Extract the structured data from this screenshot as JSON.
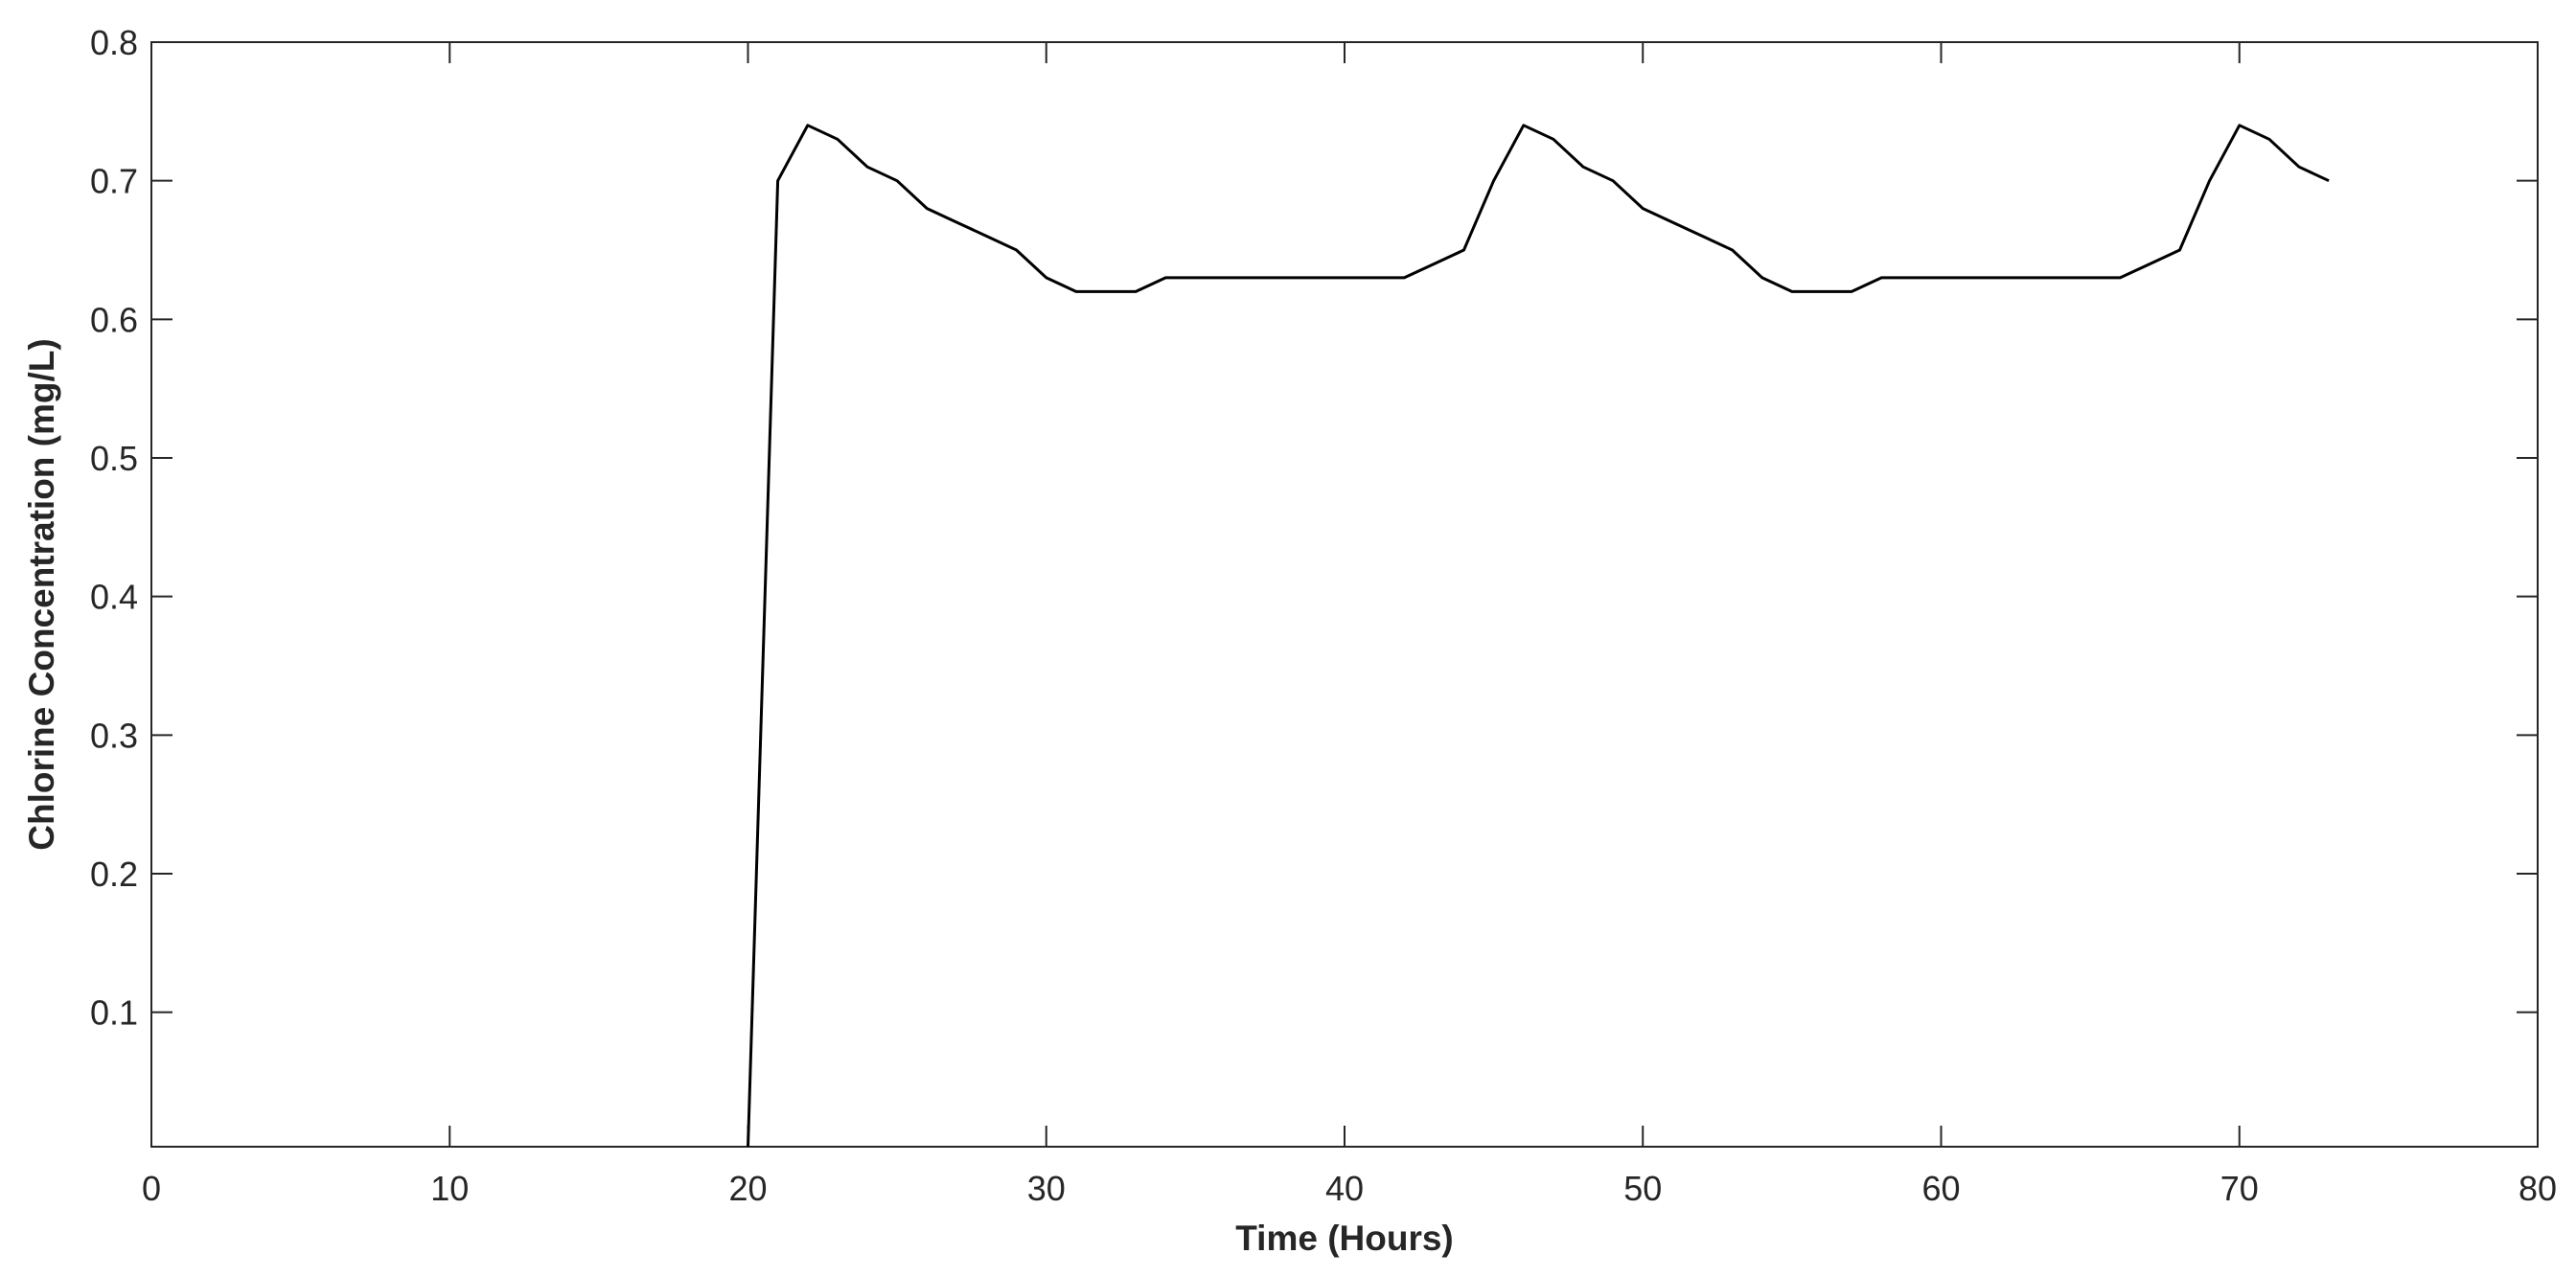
{
  "chart_data": {
    "type": "line",
    "title": "",
    "xlabel": "Time (Hours)",
    "ylabel": "Chlorine Concentration (mg/L)",
    "xlim": [
      0,
      80
    ],
    "ylim": [
      0.003,
      0.8
    ],
    "xticks": [
      0,
      10,
      20,
      30,
      40,
      50,
      60,
      70,
      80
    ],
    "xtick_labels": [
      "0",
      "10",
      "20",
      "30",
      "40",
      "50",
      "60",
      "70",
      "80"
    ],
    "yticks": [
      0.1,
      0.2,
      0.3,
      0.4,
      0.5,
      0.6,
      0.7,
      0.8
    ],
    "ytick_labels": [
      "0.1",
      "0.2",
      "0.3",
      "0.4",
      "0.5",
      "0.6",
      "0.7",
      "0.8"
    ],
    "grid": false,
    "line_color": "#000000",
    "axis_color": "#262626",
    "series": [
      {
        "x": [
          20,
          21,
          22,
          23,
          24,
          25,
          26,
          27,
          28,
          29,
          30,
          31,
          32,
          33,
          34,
          35,
          36,
          37,
          38,
          39,
          40,
          41,
          42,
          43,
          44,
          45,
          46,
          47,
          48,
          49,
          50,
          51,
          52,
          53,
          54,
          55,
          56,
          57,
          58,
          59,
          60,
          61,
          62,
          63,
          64,
          65,
          66,
          67,
          68,
          69,
          70,
          71,
          72,
          73
        ],
        "y": [
          0.003,
          0.7,
          0.74,
          0.73,
          0.71,
          0.7,
          0.68,
          0.67,
          0.66,
          0.65,
          0.63,
          0.62,
          0.62,
          0.62,
          0.63,
          0.63,
          0.63,
          0.63,
          0.63,
          0.63,
          0.63,
          0.63,
          0.63,
          0.64,
          0.65,
          0.7,
          0.74,
          0.73,
          0.71,
          0.7,
          0.68,
          0.67,
          0.66,
          0.65,
          0.63,
          0.62,
          0.62,
          0.62,
          0.63,
          0.63,
          0.63,
          0.63,
          0.63,
          0.63,
          0.63,
          0.63,
          0.63,
          0.64,
          0.65,
          0.7,
          0.74,
          0.73,
          0.71,
          0.7
        ]
      }
    ]
  }
}
